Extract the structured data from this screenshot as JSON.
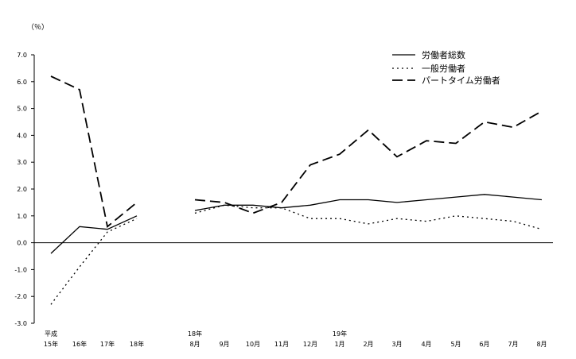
{
  "chart_data": {
    "type": "line",
    "ylabel": "（％）",
    "ylim": [
      -3.0,
      7.0
    ],
    "yticks": [
      "7.0",
      "6.0",
      "5.0",
      "4.0",
      "3.0",
      "2.0",
      "1.0",
      "0.0",
      "-1.0",
      "-2.0",
      "-3.0"
    ],
    "grid": false,
    "legend_position": "top-right",
    "x_labels": [
      {
        "year": "平成",
        "label": "15年"
      },
      {
        "year": "",
        "label": "16年"
      },
      {
        "year": "",
        "label": "17年"
      },
      {
        "year": "",
        "label": "18年"
      },
      {
        "year": "18年",
        "label": "8月"
      },
      {
        "year": "",
        "label": "9月"
      },
      {
        "year": "",
        "label": "10月"
      },
      {
        "year": "",
        "label": "11月"
      },
      {
        "year": "",
        "label": "12月"
      },
      {
        "year": "19年",
        "label": "1月"
      },
      {
        "year": "",
        "label": "2月"
      },
      {
        "year": "",
        "label": "3月"
      },
      {
        "year": "",
        "label": "4月"
      },
      {
        "year": "",
        "label": "5月"
      },
      {
        "year": "",
        "label": "6月"
      },
      {
        "year": "",
        "label": "7月"
      },
      {
        "year": "",
        "label": "8月"
      }
    ],
    "segments": [
      [
        0,
        3
      ],
      [
        4,
        16
      ]
    ],
    "series": [
      {
        "name": "労働者総数",
        "style": "solid",
        "color": "#000000",
        "values": [
          -0.4,
          0.6,
          0.5,
          1.0,
          1.2,
          1.4,
          1.4,
          1.3,
          1.4,
          1.6,
          1.6,
          1.5,
          1.6,
          1.7,
          1.8,
          1.7,
          1.6
        ]
      },
      {
        "name": "一般労働者",
        "style": "dotted",
        "color": "#000000",
        "values": [
          -2.3,
          -0.9,
          0.4,
          0.9,
          1.1,
          1.4,
          1.3,
          1.3,
          0.9,
          0.9,
          0.7,
          0.9,
          0.8,
          1.0,
          0.9,
          0.8,
          0.5
        ]
      },
      {
        "name": "パートタイム労働者",
        "style": "dashed",
        "color": "#000000",
        "values": [
          6.2,
          5.7,
          0.6,
          1.5,
          1.6,
          1.5,
          1.1,
          1.5,
          2.9,
          3.3,
          4.2,
          3.2,
          3.8,
          3.7,
          4.5,
          4.3,
          4.9
        ]
      }
    ]
  }
}
